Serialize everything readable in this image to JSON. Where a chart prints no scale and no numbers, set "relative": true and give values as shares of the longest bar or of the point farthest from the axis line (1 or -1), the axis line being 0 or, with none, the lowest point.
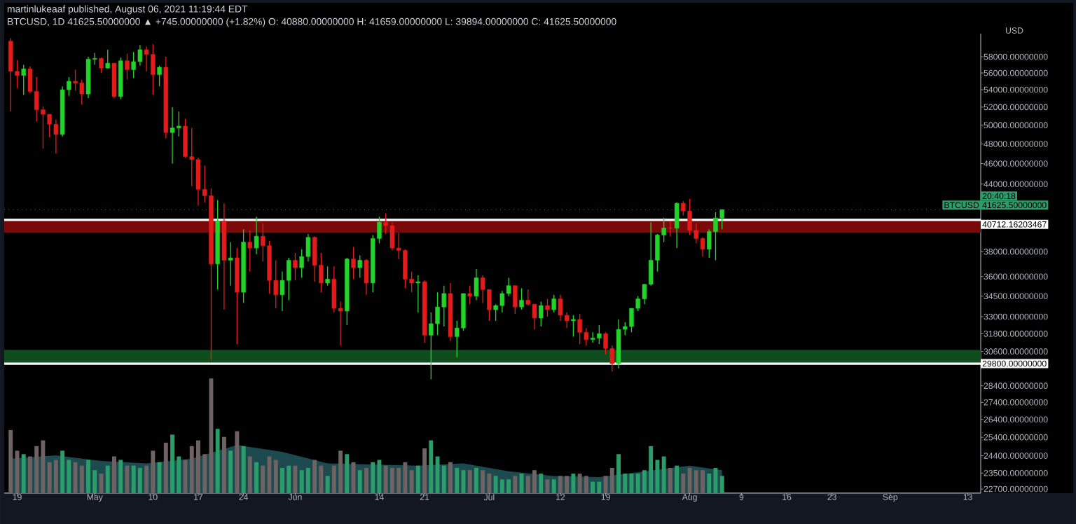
{
  "chart_data": [
    {
      "type": "candlestick",
      "title": "martinlukeaaf published, August 06, 2021 11:19:44 EDT",
      "subtitle": "BTCUSD, 1D 41625.50000000 ▲ +745.00000000 (+1.82%) O: 40880.00000000 H: 41659.00000000 L: 39894.00000000 C: 41625.50000000",
      "ylabel": "USD",
      "x": [
        "2021-04-18",
        "2021-04-19",
        "2021-04-20",
        "2021-04-21",
        "2021-04-22",
        "2021-04-23",
        "2021-04-24",
        "2021-04-25",
        "2021-04-26",
        "2021-04-27",
        "2021-04-28",
        "2021-04-29",
        "2021-04-30",
        "2021-05-01",
        "2021-05-02",
        "2021-05-03",
        "2021-05-04",
        "2021-05-05",
        "2021-05-06",
        "2021-05-07",
        "2021-05-08",
        "2021-05-09",
        "2021-05-10",
        "2021-05-11",
        "2021-05-12",
        "2021-05-13",
        "2021-05-14",
        "2021-05-15",
        "2021-05-16",
        "2021-05-17",
        "2021-05-18",
        "2021-05-19",
        "2021-05-20",
        "2021-05-21",
        "2021-05-22",
        "2021-05-23",
        "2021-05-24",
        "2021-05-25",
        "2021-05-26",
        "2021-05-27",
        "2021-05-28",
        "2021-05-29",
        "2021-05-30",
        "2021-05-31",
        "2021-06-01",
        "2021-06-02",
        "2021-06-03",
        "2021-06-04",
        "2021-06-05",
        "2021-06-06",
        "2021-06-07",
        "2021-06-08",
        "2021-06-09",
        "2021-06-10",
        "2021-06-11",
        "2021-06-12",
        "2021-06-13",
        "2021-06-14",
        "2021-06-15",
        "2021-06-16",
        "2021-06-17",
        "2021-06-18",
        "2021-06-19",
        "2021-06-20",
        "2021-06-21",
        "2021-06-22",
        "2021-06-23",
        "2021-06-24",
        "2021-06-25",
        "2021-06-26",
        "2021-06-27",
        "2021-06-28",
        "2021-06-29",
        "2021-06-30",
        "2021-07-01",
        "2021-07-02",
        "2021-07-03",
        "2021-07-04",
        "2021-07-05",
        "2021-07-06",
        "2021-07-07",
        "2021-07-08",
        "2021-07-09",
        "2021-07-10",
        "2021-07-11",
        "2021-07-12",
        "2021-07-13",
        "2021-07-14",
        "2021-07-15",
        "2021-07-16",
        "2021-07-17",
        "2021-07-18",
        "2021-07-19",
        "2021-07-20",
        "2021-07-21",
        "2021-07-22",
        "2021-07-23",
        "2021-07-24",
        "2021-07-25",
        "2021-07-26",
        "2021-07-27",
        "2021-07-28",
        "2021-07-29",
        "2021-07-30",
        "2021-07-31",
        "2021-08-01",
        "2021-08-02",
        "2021-08-03",
        "2021-08-04",
        "2021-08-05",
        "2021-08-06"
      ],
      "ohlc": [
        [
          60000,
          60400,
          51500,
          56200
        ],
        [
          56200,
          57600,
          54200,
          55700
        ],
        [
          55700,
          57000,
          53400,
          56500
        ],
        [
          56500,
          56800,
          53600,
          53800
        ],
        [
          53800,
          55500,
          50400,
          51700
        ],
        [
          51700,
          52100,
          47500,
          51200
        ],
        [
          51200,
          51200,
          48700,
          50100
        ],
        [
          50100,
          50600,
          47000,
          49000
        ],
        [
          49000,
          54400,
          48800,
          54000
        ],
        [
          54000,
          55500,
          53300,
          55000
        ],
        [
          55000,
          56400,
          53900,
          54800
        ],
        [
          54800,
          55200,
          52300,
          53500
        ],
        [
          53500,
          58000,
          53000,
          57700
        ],
        [
          57700,
          58500,
          57000,
          57800
        ],
        [
          57800,
          57900,
          56000,
          56600
        ],
        [
          56600,
          58900,
          56500,
          57200
        ],
        [
          57200,
          57200,
          53000,
          53200
        ],
        [
          53200,
          57900,
          52900,
          57500
        ],
        [
          57500,
          58400,
          55200,
          56400
        ],
        [
          56400,
          58600,
          55400,
          57400
        ],
        [
          57400,
          59500,
          56900,
          58900
        ],
        [
          58900,
          59300,
          56200,
          58300
        ],
        [
          58300,
          59600,
          53400,
          55800
        ],
        [
          55800,
          56900,
          54400,
          56700
        ],
        [
          56700,
          58000,
          48600,
          49200
        ],
        [
          49200,
          52000,
          46000,
          49700
        ],
        [
          49700,
          51500,
          48800,
          49900
        ],
        [
          49900,
          50700,
          46600,
          46700
        ],
        [
          46700,
          49700,
          43800,
          46400
        ],
        [
          46400,
          46600,
          42000,
          43500
        ],
        [
          43500,
          45800,
          42300,
          42900
        ],
        [
          42900,
          43600,
          30000,
          37000
        ],
        [
          37000,
          42500,
          35000,
          40600
        ],
        [
          40600,
          42200,
          33500,
          37300
        ],
        [
          37300,
          38800,
          35300,
          37500
        ],
        [
          37500,
          38300,
          31100,
          34800
        ],
        [
          34800,
          39900,
          34000,
          38800
        ],
        [
          38800,
          39800,
          36400,
          38300
        ],
        [
          38300,
          41000,
          37800,
          39300
        ],
        [
          39300,
          40400,
          37200,
          38500
        ],
        [
          38500,
          38900,
          34700,
          35700
        ],
        [
          35700,
          37300,
          33600,
          34600
        ],
        [
          34600,
          36400,
          33400,
          35700
        ],
        [
          35700,
          37500,
          34200,
          37300
        ],
        [
          37300,
          37900,
          35700,
          36700
        ],
        [
          36700,
          38200,
          35900,
          37600
        ],
        [
          37600,
          39500,
          37200,
          39200
        ],
        [
          39200,
          39300,
          35600,
          36900
        ],
        [
          36900,
          37900,
          34800,
          35500
        ],
        [
          35500,
          36800,
          35300,
          35800
        ],
        [
          35800,
          36800,
          33300,
          33600
        ],
        [
          33600,
          34100,
          31000,
          33400
        ],
        [
          33400,
          37500,
          32400,
          37400
        ],
        [
          37400,
          38400,
          35800,
          36700
        ],
        [
          36700,
          37700,
          35900,
          37300
        ],
        [
          37300,
          37400,
          34600,
          35500
        ],
        [
          35500,
          39400,
          34800,
          39100
        ],
        [
          39100,
          41000,
          38700,
          40500
        ],
        [
          40500,
          41300,
          39500,
          40200
        ],
        [
          40200,
          40500,
          38100,
          38300
        ],
        [
          38300,
          39600,
          37400,
          38100
        ],
        [
          38100,
          38200,
          35100,
          35800
        ],
        [
          35800,
          36400,
          34800,
          35500
        ],
        [
          35500,
          36100,
          33300,
          35600
        ],
        [
          35600,
          35700,
          31200,
          31700
        ],
        [
          31700,
          33300,
          28800,
          32500
        ],
        [
          32500,
          34800,
          31700,
          33700
        ],
        [
          33700,
          35300,
          32300,
          34700
        ],
        [
          34700,
          35500,
          31300,
          31600
        ],
        [
          31600,
          32700,
          30200,
          32200
        ],
        [
          32200,
          34700,
          32000,
          34700
        ],
        [
          34700,
          35300,
          33900,
          34500
        ],
        [
          34500,
          36600,
          34200,
          35900
        ],
        [
          35900,
          36100,
          34000,
          35000
        ],
        [
          35000,
          35000,
          32700,
          33500
        ],
        [
          33500,
          33900,
          32700,
          33800
        ],
        [
          33800,
          34900,
          33300,
          34700
        ],
        [
          34700,
          35900,
          34500,
          35300
        ],
        [
          35300,
          35300,
          33200,
          33700
        ],
        [
          33700,
          35100,
          33500,
          34200
        ],
        [
          34200,
          35000,
          33800,
          33900
        ],
        [
          33900,
          33900,
          32100,
          32900
        ],
        [
          32900,
          34100,
          32300,
          33800
        ],
        [
          33800,
          34300,
          33000,
          33500
        ],
        [
          33500,
          34600,
          33300,
          34300
        ],
        [
          34300,
          34600,
          32700,
          33100
        ],
        [
          33100,
          33300,
          32200,
          32700
        ],
        [
          32700,
          33100,
          31600,
          32800
        ],
        [
          32800,
          33200,
          31100,
          31900
        ],
        [
          31900,
          32200,
          31000,
          31400
        ],
        [
          31400,
          31900,
          31200,
          31500
        ],
        [
          31500,
          32400,
          31100,
          31800
        ],
        [
          31800,
          31900,
          30400,
          30800
        ],
        [
          30800,
          31000,
          29300,
          29800
        ],
        [
          29800,
          32800,
          29500,
          32100
        ],
        [
          32100,
          32600,
          31700,
          32300
        ],
        [
          32300,
          33600,
          31900,
          33600
        ],
        [
          33600,
          34500,
          33400,
          34300
        ],
        [
          34300,
          35400,
          33900,
          35400
        ],
        [
          35400,
          40500,
          35300,
          37300
        ],
        [
          37300,
          39500,
          36400,
          39400
        ],
        [
          39400,
          40900,
          38800,
          40000
        ],
        [
          40000,
          40600,
          39300,
          39990
        ],
        [
          39990,
          42300,
          38300,
          42200
        ],
        [
          42200,
          42400,
          41100,
          41500
        ],
        [
          41500,
          42600,
          39400,
          39800
        ],
        [
          39800,
          40400,
          38700,
          39100
        ],
        [
          39100,
          39200,
          37600,
          38200
        ],
        [
          38200,
          39900,
          37500,
          39700
        ],
        [
          39700,
          41400,
          37300,
          40880
        ],
        [
          40880,
          41659,
          39894,
          41625.5
        ]
      ],
      "colors": [
        "#e31b1b",
        "#e31b1b",
        "#22d32a",
        "#e31b1b",
        "#e31b1b",
        "#e31b1b",
        "#e31b1b",
        "#e31b1b",
        "#22d32a",
        "#22d32a",
        "#e31b1b",
        "#e31b1b",
        "#22d32a",
        "#22d32a",
        "#e31b1b",
        "#22d32a",
        "#e31b1b",
        "#22d32a",
        "#e31b1b",
        "#22d32a",
        "#22d32a",
        "#e31b1b",
        "#e31b1b",
        "#22d32a",
        "#e31b1b",
        "#22d32a",
        "#22d32a",
        "#e31b1b",
        "#e31b1b",
        "#e31b1b",
        "#e31b1b",
        "#e31b1b",
        "#22d32a",
        "#e31b1b",
        "#22d32a",
        "#e31b1b",
        "#22d32a",
        "#e31b1b",
        "#22d32a",
        "#e31b1b",
        "#e31b1b",
        "#e31b1b",
        "#22d32a",
        "#22d32a",
        "#e31b1b",
        "#22d32a",
        "#22d32a",
        "#e31b1b",
        "#e31b1b",
        "#22d32a",
        "#e31b1b",
        "#e31b1b",
        "#22d32a",
        "#e31b1b",
        "#22d32a",
        "#e31b1b",
        "#22d32a",
        "#22d32a",
        "#e31b1b",
        "#e31b1b",
        "#e31b1b",
        "#e31b1b",
        "#e31b1b",
        "#22d32a",
        "#e31b1b",
        "#22d32a",
        "#22d32a",
        "#22d32a",
        "#e31b1b",
        "#22d32a",
        "#22d32a",
        "#e31b1b",
        "#22d32a",
        "#e31b1b",
        "#e31b1b",
        "#22d32a",
        "#22d32a",
        "#22d32a",
        "#e31b1b",
        "#22d32a",
        "#e31b1b",
        "#e31b1b",
        "#22d32a",
        "#e31b1b",
        "#22d32a",
        "#e31b1b",
        "#e31b1b",
        "#22d32a",
        "#e31b1b",
        "#e31b1b",
        "#22d32a",
        "#22d32a",
        "#e31b1b",
        "#e31b1b",
        "#22d32a",
        "#22d32a",
        "#22d32a",
        "#22d32a",
        "#22d32a",
        "#22d32a",
        "#22d32a",
        "#22d32a",
        "#e31b1b",
        "#22d32a",
        "#e31b1b",
        "#e31b1b",
        "#e31b1b",
        "#e31b1b",
        "#22d32a",
        "#22d32a",
        "#22d32a"
      ],
      "xlim": [
        "2021-04-17",
        "2021-09-15"
      ],
      "xticks": [
        {
          "value": "2021-04-19",
          "label": "19"
        },
        {
          "value": "2021-05-01",
          "label": "May"
        },
        {
          "value": "2021-05-10",
          "label": "10"
        },
        {
          "value": "2021-05-17",
          "label": "17"
        },
        {
          "value": "2021-05-24",
          "label": "24"
        },
        {
          "value": "2021-06-01",
          "label": "Jun"
        },
        {
          "value": "2021-06-14",
          "label": "14"
        },
        {
          "value": "2021-06-21",
          "label": "21"
        },
        {
          "value": "2021-07-01",
          "label": "Jul"
        },
        {
          "value": "2021-07-12",
          "label": "12"
        },
        {
          "value": "2021-07-19",
          "label": "19"
        },
        {
          "value": "2021-08-01",
          "label": "Aug"
        },
        {
          "value": "2021-08-09",
          "label": "9"
        },
        {
          "value": "2021-08-16",
          "label": "16"
        },
        {
          "value": "2021-08-23",
          "label": "23"
        },
        {
          "value": "2021-09-01",
          "label": "Sep"
        },
        {
          "value": "2021-09-13",
          "label": "13"
        }
      ],
      "log": true,
      "ylim": [
        22500,
        61000
      ],
      "yticks": [
        {
          "value": 58000,
          "label": "58000.00000000"
        },
        {
          "value": 56000,
          "label": "56000.00000000"
        },
        {
          "value": 54000,
          "label": "54000.00000000"
        },
        {
          "value": 52000,
          "label": "52000.00000000"
        },
        {
          "value": 50000,
          "label": "50000.00000000"
        },
        {
          "value": 48000,
          "label": "48000.00000000"
        },
        {
          "value": 46000,
          "label": "46000.00000000"
        },
        {
          "value": 44000,
          "label": "44000.00000000"
        },
        {
          "value": 38000,
          "label": "38000.00000000"
        },
        {
          "value": 36000,
          "label": "36000.00000000"
        },
        {
          "value": 34500,
          "label": "34500.00000000"
        },
        {
          "value": 33000,
          "label": "33000.00000000"
        },
        {
          "value": 31800,
          "label": "31800.00000000"
        },
        {
          "value": 30600,
          "label": "30600.00000000"
        },
        {
          "value": 28400,
          "label": "28400.00000000"
        },
        {
          "value": 27400,
          "label": "27400.00000000"
        },
        {
          "value": 26400,
          "label": "26400.00000000"
        },
        {
          "value": 25400,
          "label": "25400.00000000"
        },
        {
          "value": 24400,
          "label": "24400.00000000"
        },
        {
          "value": 23500,
          "label": "23500.00000000"
        },
        {
          "value": 22700,
          "label": "22700.00000000"
        }
      ],
      "bands": [
        {
          "axis": "y",
          "from": 39600,
          "to": 40712,
          "color": "#7a0a0a"
        },
        {
          "axis": "y",
          "from": 29800,
          "to": 30700,
          "color": "#0f4d1e"
        }
      ],
      "ref_lines": [
        {
          "axis": "y",
          "value": 41625.5,
          "label": "41625.50000000",
          "color": "#2b9d6a",
          "line_style": "dotted"
        },
        {
          "axis": "y",
          "value": 40712.16203467,
          "label": "40712.16203467",
          "color": "#ffffff"
        },
        {
          "axis": "y",
          "value": 29800,
          "label": "29800.00000000",
          "color": "#ffffff"
        }
      ],
      "annotations": [
        "BTCUSD",
        "20:40:18"
      ]
    },
    {
      "type": "bar",
      "relative": true,
      "tick_labels": false,
      "x": [
        "2021-04-18",
        "2021-04-19",
        "2021-04-20",
        "2021-04-21",
        "2021-04-22",
        "2021-04-23",
        "2021-04-24",
        "2021-04-25",
        "2021-04-26",
        "2021-04-27",
        "2021-04-28",
        "2021-04-29",
        "2021-04-30",
        "2021-05-01",
        "2021-05-02",
        "2021-05-03",
        "2021-05-04",
        "2021-05-05",
        "2021-05-06",
        "2021-05-07",
        "2021-05-08",
        "2021-05-09",
        "2021-05-10",
        "2021-05-11",
        "2021-05-12",
        "2021-05-13",
        "2021-05-14",
        "2021-05-15",
        "2021-05-16",
        "2021-05-17",
        "2021-05-18",
        "2021-05-19",
        "2021-05-20",
        "2021-05-21",
        "2021-05-22",
        "2021-05-23",
        "2021-05-24",
        "2021-05-25",
        "2021-05-26",
        "2021-05-27",
        "2021-05-28",
        "2021-05-29",
        "2021-05-30",
        "2021-05-31",
        "2021-06-01",
        "2021-06-02",
        "2021-06-03",
        "2021-06-04",
        "2021-06-05",
        "2021-06-06",
        "2021-06-07",
        "2021-06-08",
        "2021-06-09",
        "2021-06-10",
        "2021-06-11",
        "2021-06-12",
        "2021-06-13",
        "2021-06-14",
        "2021-06-15",
        "2021-06-16",
        "2021-06-17",
        "2021-06-18",
        "2021-06-19",
        "2021-06-20",
        "2021-06-21",
        "2021-06-22",
        "2021-06-23",
        "2021-06-24",
        "2021-06-25",
        "2021-06-26",
        "2021-06-27",
        "2021-06-28",
        "2021-06-29",
        "2021-06-30",
        "2021-07-01",
        "2021-07-02",
        "2021-07-03",
        "2021-07-04",
        "2021-07-05",
        "2021-07-06",
        "2021-07-07",
        "2021-07-08",
        "2021-07-09",
        "2021-07-10",
        "2021-07-11",
        "2021-07-12",
        "2021-07-13",
        "2021-07-14",
        "2021-07-15",
        "2021-07-16",
        "2021-07-17",
        "2021-07-18",
        "2021-07-19",
        "2021-07-20",
        "2021-07-21",
        "2021-07-22",
        "2021-07-23",
        "2021-07-24",
        "2021-07-25",
        "2021-07-26",
        "2021-07-27",
        "2021-07-28",
        "2021-07-29",
        "2021-07-30",
        "2021-07-31",
        "2021-08-01",
        "2021-08-02",
        "2021-08-03",
        "2021-08-04",
        "2021-08-05",
        "2021-08-06"
      ],
      "xlim": [
        "2021-04-17",
        "2021-09-15"
      ],
      "series": [
        {
          "type": "area",
          "color": "#1c4a4f",
          "x": [
            "2021-04-18",
            "2021-04-25",
            "2021-05-02",
            "2021-05-09",
            "2021-05-16",
            "2021-05-23",
            "2021-05-30",
            "2021-06-06",
            "2021-06-13",
            "2021-06-20",
            "2021-06-27",
            "2021-07-04",
            "2021-07-11",
            "2021-07-18",
            "2021-07-25",
            "2021-08-01",
            "2021-08-06"
          ],
          "values": [
            0.3,
            0.33,
            0.28,
            0.26,
            0.3,
            0.42,
            0.36,
            0.26,
            0.25,
            0.24,
            0.26,
            0.19,
            0.15,
            0.14,
            0.19,
            0.24,
            0.2
          ]
        },
        {
          "type": "bar",
          "values": [
            0.55,
            0.37,
            0.34,
            0.32,
            0.41,
            0.46,
            0.27,
            0.29,
            0.37,
            0.29,
            0.27,
            0.24,
            0.29,
            0.2,
            0.17,
            0.24,
            0.32,
            0.29,
            0.24,
            0.24,
            0.22,
            0.24,
            0.37,
            0.27,
            0.44,
            0.51,
            0.32,
            0.29,
            0.41,
            0.46,
            0.34,
            1,
            0.56,
            0.49,
            0.37,
            0.54,
            0.41,
            0.32,
            0.27,
            0.24,
            0.32,
            0.29,
            0.22,
            0.24,
            0.24,
            0.2,
            0.22,
            0.29,
            0.24,
            0.15,
            0.24,
            0.37,
            0.34,
            0.27,
            0.2,
            0.22,
            0.27,
            0.29,
            0.24,
            0.22,
            0.22,
            0.27,
            0.2,
            0.24,
            0.39,
            0.46,
            0.32,
            0.24,
            0.27,
            0.22,
            0.2,
            0.2,
            0.22,
            0.2,
            0.17,
            0.15,
            0.12,
            0.12,
            0.15,
            0.17,
            0.15,
            0.2,
            0.17,
            0.12,
            0.12,
            0.15,
            0.15,
            0.17,
            0.17,
            0.15,
            0.1,
            0.1,
            0.15,
            0.22,
            0.34,
            0.17,
            0.17,
            0.17,
            0.2,
            0.41,
            0.29,
            0.32,
            0.22,
            0.24,
            0.17,
            0.22,
            0.2,
            0.2,
            0.17,
            0.22,
            0.15
          ],
          "colors": [
            "#6f6262",
            "#6f6262",
            "#2b9d6a",
            "#6f6262",
            "#6f6262",
            "#6f6262",
            "#6f6262",
            "#6f6262",
            "#2b9d6a",
            "#2b9d6a",
            "#6f6262",
            "#6f6262",
            "#2b9d6a",
            "#2b9d6a",
            "#6f6262",
            "#2b9d6a",
            "#6f6262",
            "#2b9d6a",
            "#6f6262",
            "#2b9d6a",
            "#2b9d6a",
            "#6f6262",
            "#6f6262",
            "#2b9d6a",
            "#6f6262",
            "#2b9d6a",
            "#2b9d6a",
            "#6f6262",
            "#6f6262",
            "#6f6262",
            "#6f6262",
            "#6f6262",
            "#2b9d6a",
            "#6f6262",
            "#2b9d6a",
            "#6f6262",
            "#2b9d6a",
            "#6f6262",
            "#2b9d6a",
            "#6f6262",
            "#6f6262",
            "#6f6262",
            "#2b9d6a",
            "#2b9d6a",
            "#6f6262",
            "#2b9d6a",
            "#2b9d6a",
            "#6f6262",
            "#6f6262",
            "#2b9d6a",
            "#6f6262",
            "#6f6262",
            "#2b9d6a",
            "#6f6262",
            "#2b9d6a",
            "#6f6262",
            "#2b9d6a",
            "#2b9d6a",
            "#6f6262",
            "#6f6262",
            "#6f6262",
            "#6f6262",
            "#6f6262",
            "#2b9d6a",
            "#6f6262",
            "#2b9d6a",
            "#2b9d6a",
            "#2b9d6a",
            "#6f6262",
            "#2b9d6a",
            "#2b9d6a",
            "#6f6262",
            "#2b9d6a",
            "#6f6262",
            "#6f6262",
            "#2b9d6a",
            "#2b9d6a",
            "#2b9d6a",
            "#6f6262",
            "#2b9d6a",
            "#6f6262",
            "#6f6262",
            "#2b9d6a",
            "#6f6262",
            "#2b9d6a",
            "#6f6262",
            "#6f6262",
            "#2b9d6a",
            "#6f6262",
            "#6f6262",
            "#2b9d6a",
            "#2b9d6a",
            "#6f6262",
            "#6f6262",
            "#2b9d6a",
            "#2b9d6a",
            "#2b9d6a",
            "#2b9d6a",
            "#2b9d6a",
            "#2b9d6a",
            "#2b9d6a",
            "#2b9d6a",
            "#6f6262",
            "#2b9d6a",
            "#6f6262",
            "#6f6262",
            "#6f6262",
            "#6f6262",
            "#2b9d6a",
            "#2b9d6a",
            "#2b9d6a"
          ]
        }
      ]
    }
  ]
}
